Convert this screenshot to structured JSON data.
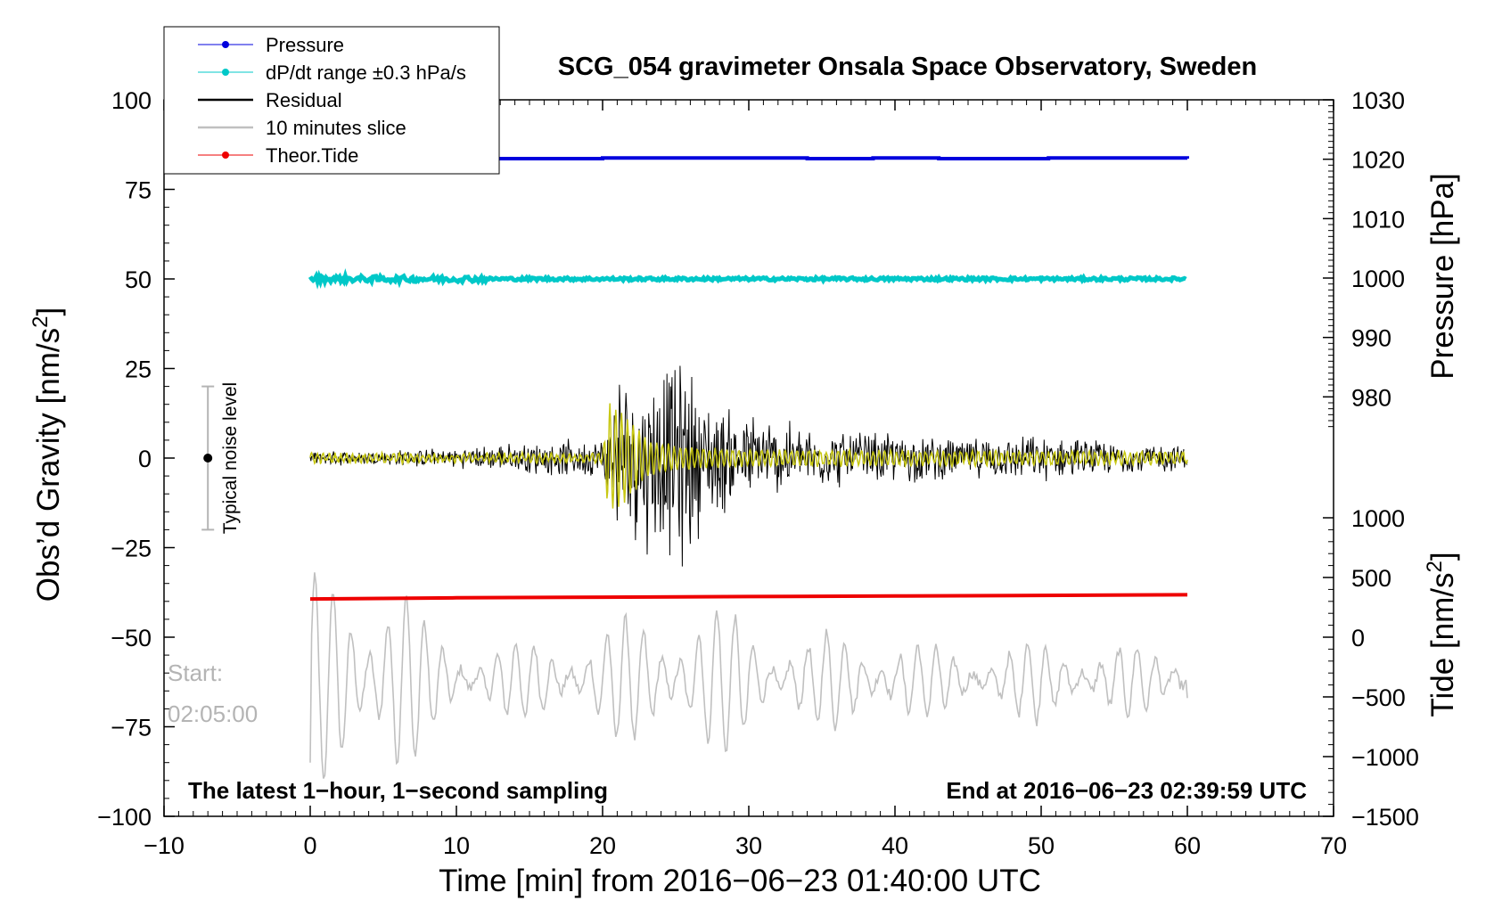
{
  "chart_data": {
    "type": "line",
    "title": "SCG_054 gravimeter Onsala Space Observatory, Sweden",
    "xlabel": "Time [min] from 2016−06−23 01:40:00 UTC",
    "ylabel_left_text": "Obs’d Gravity [nm/s",
    "ylabel_left_sup": "2",
    "ylabel_left_close": "]",
    "ylabel_right_top": "Pressure [hPa]",
    "ylabel_right_bottom_text": "Tide [nm/s",
    "ylabel_right_bottom_sup": "2",
    "ylabel_right_bottom_close": "]",
    "xlim": [
      -10,
      70
    ],
    "ylim": [
      -100,
      100
    ],
    "x_ticks": [
      -10,
      0,
      10,
      20,
      30,
      40,
      50,
      60,
      70
    ],
    "x_tick_labels": [
      "−10",
      "0",
      "10",
      "20",
      "30",
      "40",
      "50",
      "60",
      "70"
    ],
    "y_ticks": [
      100,
      75,
      50,
      25,
      0,
      -25,
      -50,
      -75,
      -100
    ],
    "y_tick_labels": [
      "100",
      "75",
      "50",
      "25",
      "0",
      "−25",
      "−50",
      "−75",
      "−100"
    ],
    "pressure_axis": {
      "range": [
        970,
        1030
      ],
      "ticks": [
        1030,
        1020,
        1010,
        1000,
        990,
        980
      ],
      "tick_labels": [
        "1030",
        "1020",
        "1010",
        "1000",
        "990",
        "980"
      ]
    },
    "tide_axis": {
      "range": [
        -1500,
        1000
      ],
      "ticks": [
        1000,
        500,
        0,
        -500,
        -1000,
        -1500
      ],
      "tick_labels": [
        "1000",
        "500",
        "0",
        "−500",
        "−1000",
        "−1500"
      ]
    },
    "legend": {
      "placement": "top-left",
      "entries": [
        {
          "name": "Pressure",
          "color": "#0000dd",
          "marker": true
        },
        {
          "name": "dP/dt range ±0.3 hPa/s",
          "color": "#00c8c8",
          "marker": true
        },
        {
          "name": "Residual",
          "color": "#000000",
          "marker": false
        },
        {
          "name": "10 minutes slice",
          "color": "#c0c0c0",
          "marker": false
        },
        {
          "name": "Theor.Tide",
          "color": "#ee0000",
          "marker": true
        }
      ]
    },
    "series": [
      {
        "name": "Pressure",
        "color": "#0000dd",
        "axis": "pressure",
        "x": [
          0,
          20,
          34,
          38.5,
          43,
          50.5,
          56,
          60
        ],
        "values": [
          1020.1,
          1020.2,
          1020.1,
          1020.2,
          1020.1,
          1020.2,
          1020.2,
          1020.1
        ]
      },
      {
        "name": "dP/dt range ±0.3 hPa/s",
        "color": "#00c8c8",
        "axis": "gravity",
        "x": [
          0,
          60
        ],
        "values": [
          50,
          50
        ],
        "spread": 0.8
      },
      {
        "name": "Theor.Tide",
        "color": "#ee0000",
        "axis": "tide",
        "x": [
          0,
          10,
          20,
          30,
          40,
          50,
          60
        ],
        "values": [
          320,
          330,
          335,
          340,
          345,
          350,
          355
        ]
      },
      {
        "name": "Residual",
        "color": "#000000",
        "axis": "gravity",
        "x_range": [
          0,
          60
        ],
        "step_min": 0.05,
        "envelope": [
          [
            0,
            2
          ],
          [
            10,
            3
          ],
          [
            15,
            5
          ],
          [
            20,
            6
          ],
          [
            21,
            25
          ],
          [
            24,
            30
          ],
          [
            25.5,
            33
          ],
          [
            27,
            20
          ],
          [
            30,
            14
          ],
          [
            35,
            9
          ],
          [
            40,
            8
          ],
          [
            45,
            6
          ],
          [
            50,
            7
          ],
          [
            55,
            5
          ],
          [
            60,
            4
          ]
        ]
      },
      {
        "name": "Residual (filtered)",
        "color": "#c8c814",
        "axis": "gravity",
        "x_range": [
          0,
          60
        ],
        "step_min": 0.05,
        "envelope": [
          [
            0,
            1
          ],
          [
            20,
            1
          ],
          [
            20.4,
            15
          ],
          [
            21.5,
            12
          ],
          [
            23,
            5
          ],
          [
            25,
            3
          ],
          [
            30,
            2
          ],
          [
            60,
            1.5
          ]
        ]
      },
      {
        "name": "10 minutes slice",
        "color": "#c0c0c0",
        "axis": "gravity",
        "x_range": [
          0,
          60
        ],
        "step_min": 0.1,
        "center": -62,
        "envelope": [
          [
            0,
            28
          ],
          [
            3,
            35
          ],
          [
            6,
            32
          ],
          [
            8,
            15
          ],
          [
            12,
            10
          ],
          [
            18,
            12
          ],
          [
            22,
            18
          ],
          [
            26,
            22
          ],
          [
            30,
            18
          ],
          [
            34,
            12
          ],
          [
            38,
            16
          ],
          [
            42,
            10
          ],
          [
            46,
            8
          ],
          [
            50,
            12
          ],
          [
            55,
            10
          ],
          [
            60,
            8
          ]
        ],
        "end_value": -67,
        "start_value": -85
      }
    ],
    "noise_bar": {
      "label": "Typical noise level",
      "x": -7,
      "center": 0,
      "half_range": 20
    },
    "annotations": {
      "start_label": "Start:",
      "start_time": "02:05:00",
      "bottom_left": "The latest 1−hour, 1−second sampling",
      "bottom_right": "End at 2016−06−23 02:39:59 UTC"
    },
    "grid": false
  }
}
